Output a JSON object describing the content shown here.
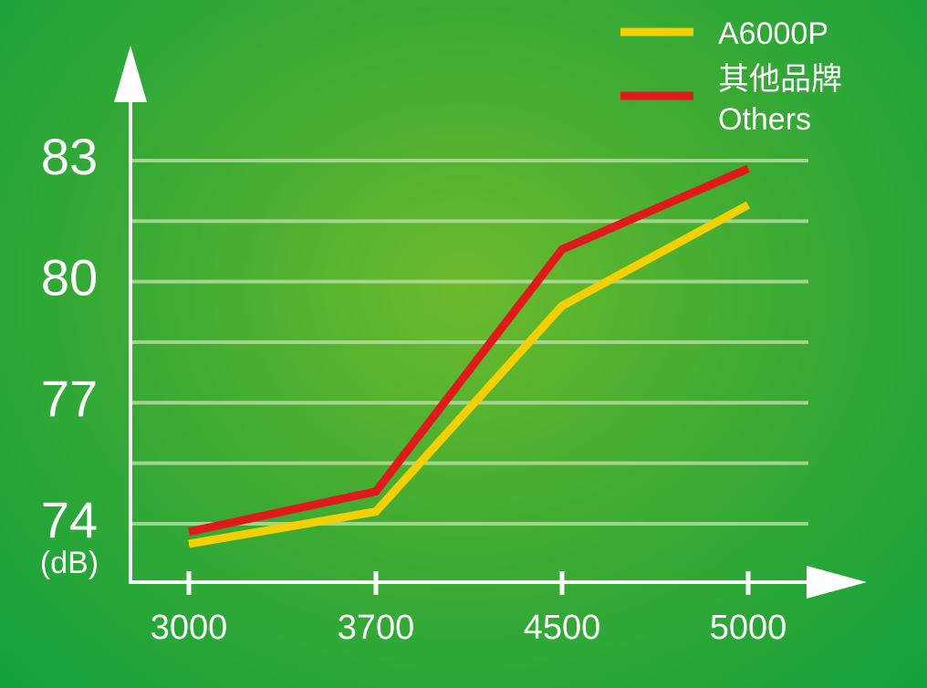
{
  "chart_data": {
    "type": "line",
    "x": [
      "3000",
      "3700",
      "4500",
      "5000"
    ],
    "series": [
      {
        "name": "A6000P",
        "color": "#f5d000",
        "values": [
          73.5,
          74.3,
          79.4,
          81.9
        ]
      },
      {
        "name": "其他品牌 Others",
        "color": "#e01a1a",
        "values": [
          73.8,
          74.8,
          80.8,
          82.8
        ]
      }
    ],
    "legend": {
      "placement": "top-right",
      "entries": [
        {
          "label": "A6000P",
          "color": "#f5d000"
        },
        {
          "label_lines": [
            "其他品牌",
            "Others"
          ],
          "color": "#e01a1a"
        }
      ]
    },
    "y_ticks": [
      "74",
      "77",
      "80",
      "83"
    ],
    "y_unit": "(dB)",
    "ylim": [
      72.5,
      84.5
    ],
    "grid": true,
    "colors": {
      "background": "#3fab32",
      "axis": "#ffffff",
      "grid": "#b5dba0"
    }
  }
}
